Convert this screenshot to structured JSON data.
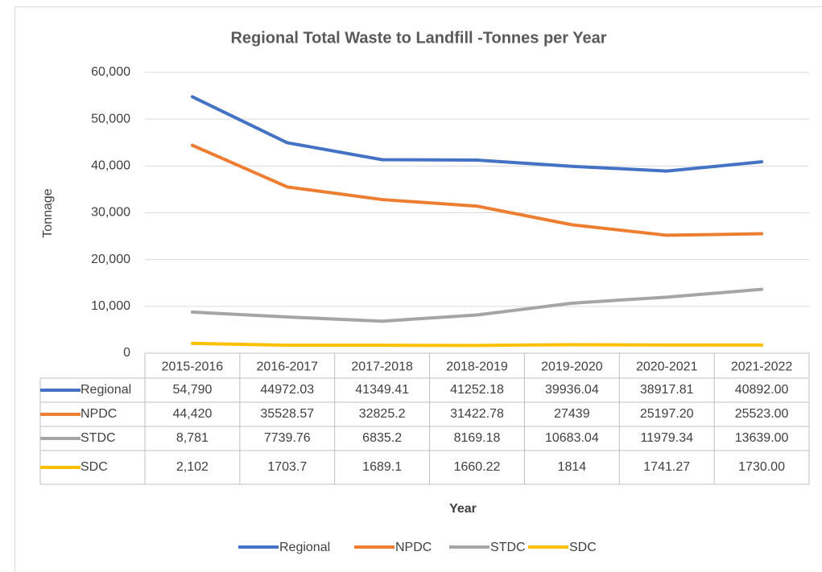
{
  "chart_data": {
    "type": "line",
    "title": "Regional Total Waste to Landfill -Tonnes per Year",
    "x_label": "Year",
    "y_label": "Tonnage",
    "categories": [
      "2015-2016",
      "2016-2017",
      "2017-2018",
      "2018-2019",
      "2019-2020",
      "2020-2021",
      "2021-2022"
    ],
    "series": [
      {
        "name": "Regional",
        "color": "#4472c4",
        "values": [
          54790,
          44972.03,
          41349.41,
          41252.18,
          39936.04,
          38917.81,
          40892
        ],
        "value_labels": [
          "54,790",
          "44972.03",
          "41349.41",
          "41252.18",
          "39936.04",
          "38917.81",
          "40892.00"
        ]
      },
      {
        "name": "NPDC",
        "color": "#ed7d31",
        "values": [
          44420,
          35528.57,
          32825.2,
          31422.78,
          27439,
          25197.2,
          25523
        ],
        "value_labels": [
          "44,420",
          "35528.57",
          "32825.2",
          "31422.78",
          "27439",
          "25197.20",
          "25523.00"
        ]
      },
      {
        "name": "STDC",
        "color": "#a5a5a5",
        "values": [
          8781,
          7739.76,
          6835.2,
          8169.18,
          10683.04,
          11979.34,
          13639
        ],
        "value_labels": [
          "8,781",
          "7739.76",
          "6835.2",
          "8169.18",
          "10683.04",
          "11979.34",
          "13639.00"
        ]
      },
      {
        "name": "SDC",
        "color": "#ffc000",
        "values": [
          2102,
          1703.7,
          1689.1,
          1660.22,
          1814,
          1741.27,
          1730
        ],
        "value_labels": [
          "2,102",
          "1703.7",
          "1689.1",
          "1660.22",
          "1814",
          "1741.27",
          "1730.00"
        ]
      }
    ],
    "ylim": [
      0,
      60000
    ],
    "yticks": [
      0,
      {
        "value": 10000,
        "label": "10,000"
      },
      {
        "value": 20000,
        "label": "20,000"
      },
      {
        "value": 30000,
        "label": "30,000"
      },
      {
        "value": 40000,
        "label": "40,000"
      },
      {
        "value": 50000,
        "label": "50,000"
      },
      {
        "value": 60000,
        "label": "60,000"
      }
    ],
    "grid": true,
    "legend": "bottom",
    "data_table": true
  }
}
